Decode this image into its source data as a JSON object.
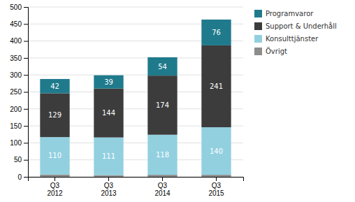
{
  "chart_data": {
    "type": "bar",
    "stacked": true,
    "categories": [
      "Q3\n2012",
      "Q3\n2013",
      "Q3\n2014",
      "Q3\n2015"
    ],
    "series": [
      {
        "name": "Övrigt",
        "color": "#8c8c8c",
        "values": [
          7,
          5,
          6,
          6
        ],
        "data_labels": false
      },
      {
        "name": "Konsulttjänster",
        "color": "#92d0e0",
        "values": [
          110,
          111,
          118,
          140
        ],
        "data_labels": true
      },
      {
        "name": "Support & Underhåll",
        "color": "#3c3c3c",
        "values": [
          129,
          144,
          174,
          241
        ],
        "data_labels": true
      },
      {
        "name": "Programvaror",
        "color": "#1f7a8c",
        "values": [
          42,
          39,
          54,
          76
        ],
        "data_labels": true
      }
    ],
    "ylim": [
      0,
      500
    ],
    "yticks": [
      0,
      50,
      100,
      150,
      200,
      250,
      300,
      350,
      400,
      450,
      500
    ],
    "grid": true,
    "legend": "right"
  }
}
